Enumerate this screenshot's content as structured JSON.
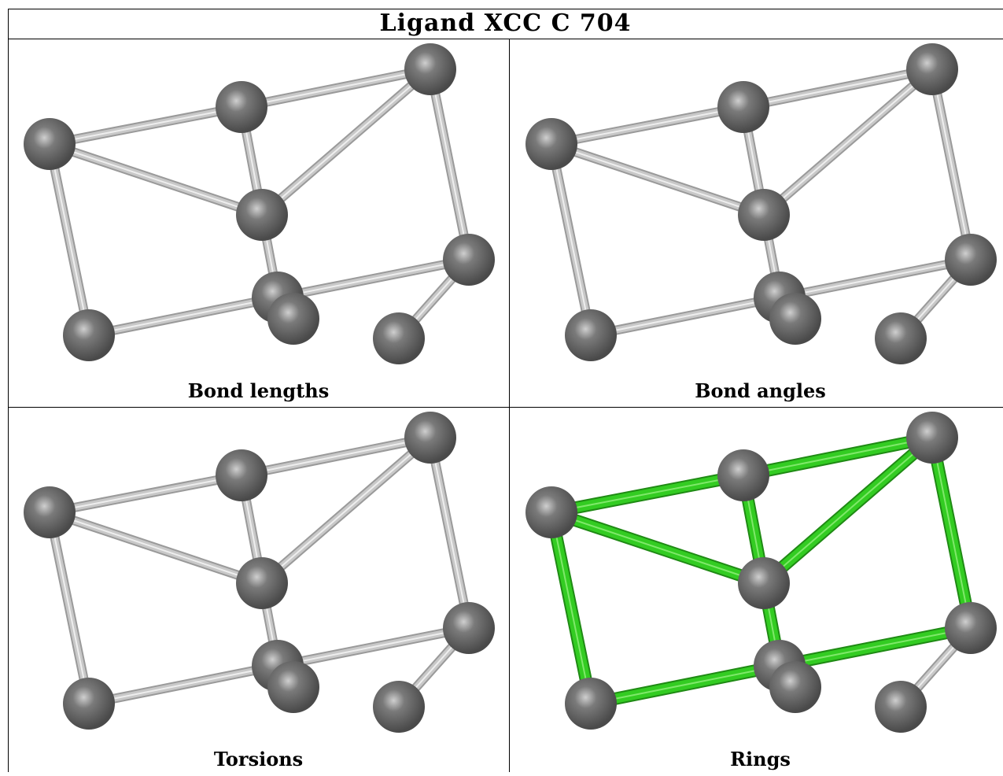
{
  "title": "Ligand XCC C 704",
  "panels": [
    {
      "caption": "Bond lengths",
      "highlight": "none"
    },
    {
      "caption": "Bond angles",
      "highlight": "none"
    },
    {
      "caption": "Torsions",
      "highlight": "none"
    },
    {
      "caption": "Rings",
      "highlight": "rings"
    }
  ],
  "colors": {
    "atom": "#7a7a7a",
    "bond": "#c8c8c8",
    "ring_bond": "#33cc22",
    "border": "#000000"
  }
}
